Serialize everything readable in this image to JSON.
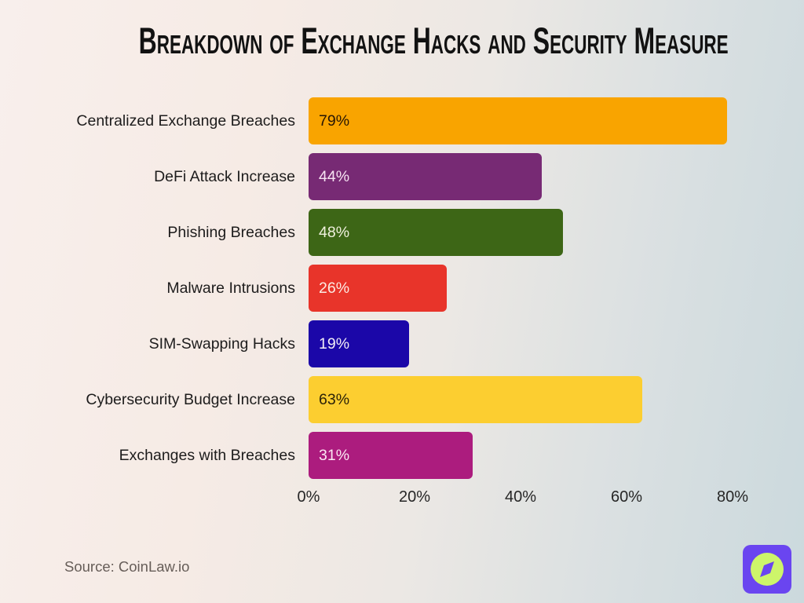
{
  "title": "Breakdown of Exchange Hacks and Security Measure",
  "source": "Source: CoinLaw.io",
  "logo": {
    "name": "coinlaw-logo",
    "bg_color": "#6a45f0",
    "circle_color": "#cdf56a",
    "needle_color": "#6a45f0"
  },
  "chart_data": {
    "type": "bar",
    "orientation": "horizontal",
    "title": "Breakdown of Exchange Hacks and Security Measure",
    "categories": [
      "Centralized Exchange Breaches",
      "DeFi Attack Increase",
      "Phishing Breaches",
      "Malware Intrusions",
      "SIM-Swapping Hacks",
      "Cybersecurity Budget Increase",
      "Exchanges with Breaches"
    ],
    "values": [
      79,
      44,
      48,
      26,
      19,
      63,
      31
    ],
    "value_labels": [
      "79%",
      "44%",
      "48%",
      "26%",
      "19%",
      "63%",
      "31%"
    ],
    "bar_colors": [
      "#f9a400",
      "#772a74",
      "#3d6616",
      "#e8342a",
      "#1b07a8",
      "#fcce30",
      "#ac1c7e"
    ],
    "value_label_colors": [
      "#271604",
      "#f6e3f2",
      "#eff0dd",
      "#fcebe3",
      "#f2eef6",
      "#2b2208",
      "#fbe7f2"
    ],
    "x_ticks": [
      "0%",
      "20%",
      "40%",
      "60%",
      "80%"
    ],
    "xlim": [
      0,
      80
    ],
    "xlabel": "",
    "ylabel": "",
    "grid": false,
    "legend": false
  }
}
